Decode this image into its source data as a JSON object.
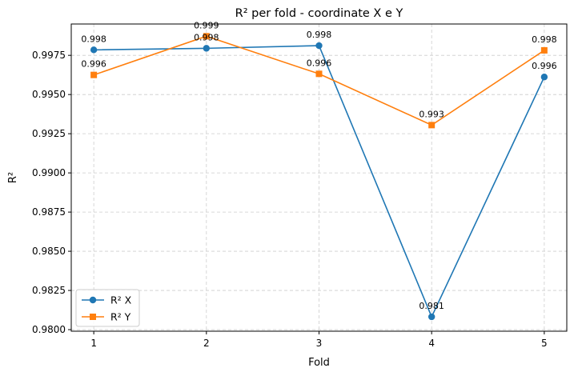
{
  "chart_data": {
    "type": "line",
    "title": "R² per fold - coordinate X e Y",
    "xlabel": "Fold",
    "ylabel": "R²",
    "x": [
      1,
      2,
      3,
      4,
      5
    ],
    "x_tick_labels": [
      "1",
      "2",
      "3",
      "4",
      "5"
    ],
    "ylim": [
      0.9799,
      0.9995
    ],
    "y_ticks": [
      0.98,
      0.9825,
      0.985,
      0.9875,
      0.99,
      0.9925,
      0.995,
      0.9975
    ],
    "y_tick_labels": [
      "0.9800",
      "0.9825",
      "0.9850",
      "0.9875",
      "0.9900",
      "0.9925",
      "0.9950",
      "0.9975"
    ],
    "grid": true,
    "legend_position": "lower-left",
    "series": [
      {
        "name": "R² X",
        "color": "#1f77b4",
        "marker": "circle",
        "values": [
          0.99785,
          0.99795,
          0.99812,
          0.98082,
          0.99612
        ],
        "labels": [
          "0.998",
          "0.998",
          "0.998",
          "0.981",
          "0.996"
        ]
      },
      {
        "name": "R² Y",
        "color": "#ff7f0e",
        "marker": "square",
        "values": [
          0.99625,
          0.99872,
          0.99632,
          0.99305,
          0.99782
        ],
        "labels": [
          "0.996",
          "0.999",
          "0.996",
          "0.993",
          "0.998"
        ]
      }
    ]
  }
}
